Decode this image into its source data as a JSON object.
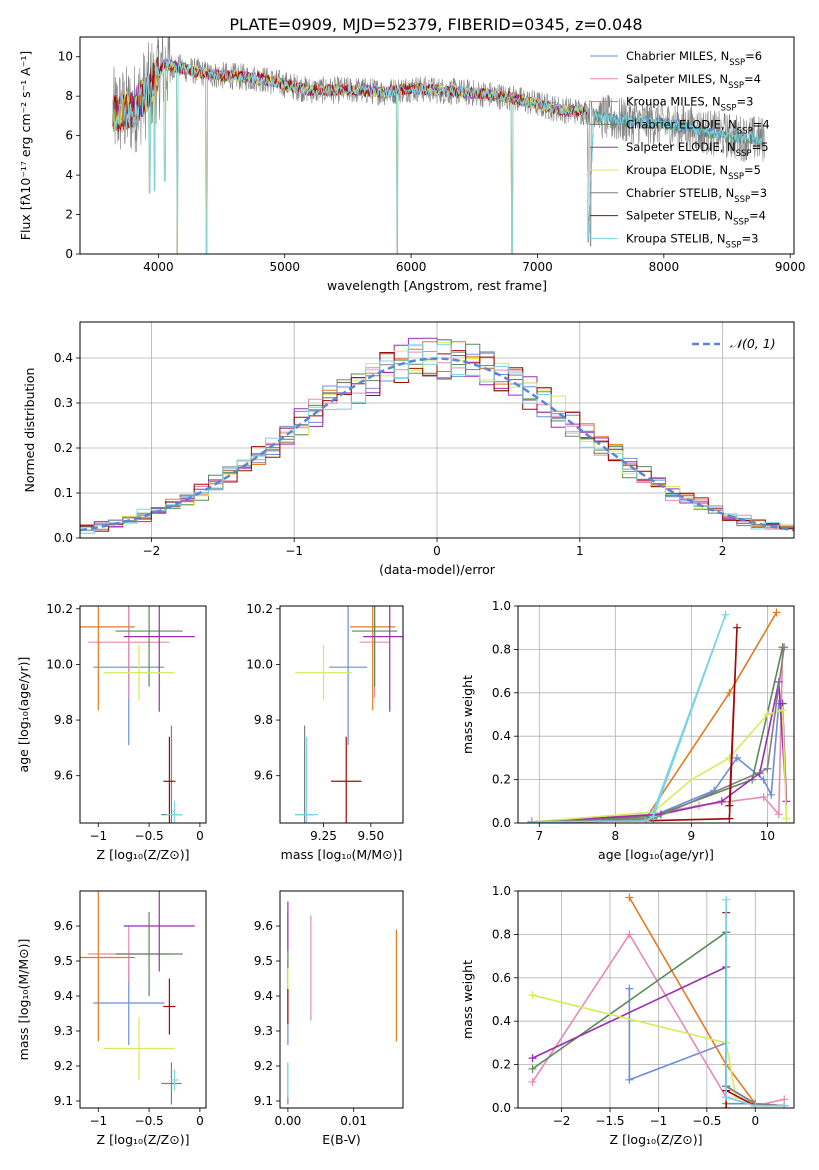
{
  "figure": {
    "title": "PLATE=0909, MJD=52379, FIBERID=0345, z=0.048"
  },
  "models": [
    {
      "name": "Chabrier MILES",
      "nssp": "6",
      "color": "#6a8fd8"
    },
    {
      "name": "Salpeter MILES",
      "nssp": "4",
      "color": "#e88ab4"
    },
    {
      "name": "Kroupa MILES",
      "nssp": "3",
      "color": "#e37a22"
    },
    {
      "name": "Chabrier ELODIE",
      "nssp": "4",
      "color": "#5a8a5a"
    },
    {
      "name": "Salpeter ELODIE",
      "nssp": "5",
      "color": "#9a2eb0"
    },
    {
      "name": "Kroupa ELODIE",
      "nssp": "5",
      "color": "#d8ea5a"
    },
    {
      "name": "Chabrier STELIB",
      "nssp": "3",
      "color": "#808080"
    },
    {
      "name": "Salpeter STELIB",
      "nssp": "4",
      "color": "#a00a0a"
    },
    {
      "name": "Kroupa STELIB",
      "nssp": "3",
      "color": "#7ad4e4"
    }
  ],
  "chart_data": [
    {
      "id": "spectrum",
      "type": "line",
      "xlabel": "wavelength [Angstrom, rest frame]",
      "ylabel": "Flux [fλ10⁻¹⁷ erg cm⁻² s⁻¹ A⁻¹]",
      "xlim": [
        3380,
        9030
      ],
      "ylim": [
        0,
        11
      ],
      "xticks": [
        4000,
        5000,
        6000,
        7000,
        8000,
        9000
      ],
      "yticks": [
        0,
        2,
        4,
        6,
        8,
        10
      ],
      "legend": "upper-right",
      "continuum": [
        [
          3640,
          7.1
        ],
        [
          3800,
          7.3
        ],
        [
          3950,
          8.6
        ],
        [
          4050,
          9.6
        ],
        [
          4200,
          9.4
        ],
        [
          4400,
          9.1
        ],
        [
          4600,
          9.0
        ],
        [
          4800,
          8.9
        ],
        [
          5000,
          8.6
        ],
        [
          5200,
          8.3
        ],
        [
          5400,
          8.3
        ],
        [
          5600,
          8.3
        ],
        [
          5800,
          8.2
        ],
        [
          6000,
          8.4
        ],
        [
          6200,
          8.3
        ],
        [
          6400,
          8.2
        ],
        [
          6600,
          8.1
        ],
        [
          6800,
          7.9
        ],
        [
          7000,
          7.6
        ],
        [
          7200,
          7.3
        ],
        [
          7400,
          7.2
        ],
        [
          7600,
          6.8
        ],
        [
          7800,
          6.7
        ],
        [
          8000,
          6.6
        ],
        [
          8200,
          6.4
        ],
        [
          8400,
          6.1
        ],
        [
          8600,
          5.9
        ],
        [
          8800,
          5.8
        ]
      ],
      "dips": [
        [
          3930,
          3.1
        ],
        [
          3970,
          3.2
        ],
        [
          4050,
          3.7
        ],
        [
          4150,
          0
        ],
        [
          4380,
          0
        ],
        [
          5890,
          0
        ],
        [
          6800,
          0
        ],
        [
          7420,
          0.4
        ]
      ]
    },
    {
      "id": "residuals",
      "type": "line",
      "xlabel": "(data-model)/error",
      "ylabel": "Normed distribution",
      "xlim": [
        -2.5,
        2.5
      ],
      "ylim": [
        0,
        0.48
      ],
      "xticks": [
        -2,
        -1,
        0,
        1,
        2
      ],
      "yticks": [
        0.0,
        0.1,
        0.2,
        0.3,
        0.4
      ],
      "legend_label": "𝒩(0, 1)",
      "legend": "upper-right",
      "bin_width": 0.1
    },
    {
      "id": "age_vs_Z",
      "type": "scatter",
      "xlabel": "Z [log₁₀(Z/Z⊙)]",
      "ylabel": "age  [log₁₀(age/yr)]",
      "xlim": [
        -1.18,
        0.06
      ],
      "ylim": [
        9.43,
        10.21
      ],
      "xticks": [
        -1.0,
        -0.5,
        0.0
      ],
      "yticks": [
        9.6,
        9.8,
        10.0,
        10.2
      ],
      "points": [
        {
          "x": -0.7,
          "y": 9.99,
          "xerr": 0.35,
          "yerr": 0.28
        },
        {
          "x": -0.7,
          "y": 10.08,
          "xerr": 0.4,
          "yerr": 0.2
        },
        {
          "x": -1.0,
          "y": 10.135,
          "xerr": 0.36,
          "yerr": 0.3
        },
        {
          "x": -0.5,
          "y": 10.12,
          "xerr": 0.33,
          "yerr": 0.2
        },
        {
          "x": -0.4,
          "y": 10.1,
          "xerr": 0.35,
          "yerr": 0.27
        },
        {
          "x": -0.6,
          "y": 9.97,
          "xerr": 0.35,
          "yerr": 0.1
        },
        {
          "x": -0.28,
          "y": 9.46,
          "xerr": 0.1,
          "yerr": 0.32
        },
        {
          "x": -0.3,
          "y": 9.58,
          "xerr": 0.06,
          "yerr": 0.16
        },
        {
          "x": -0.25,
          "y": 9.46,
          "xerr": 0.08,
          "yerr": 0.05
        }
      ]
    },
    {
      "id": "age_vs_mass",
      "type": "scatter",
      "xlabel": "mass [log₁₀(M/M⊙)]",
      "ylabel": "",
      "xlim": [
        9.02,
        9.67
      ],
      "ylim": [
        9.43,
        10.21
      ],
      "xticks": [
        9.25,
        9.5
      ],
      "xtick_labels": [
        "9.25",
        "9.50"
      ],
      "yticks": [
        9.6,
        9.8,
        10.0,
        10.2
      ],
      "points": [
        {
          "x": 9.38,
          "y": 9.99,
          "xerr": 0.1,
          "yerr": 0.28
        },
        {
          "x": 9.52,
          "y": 10.08,
          "xerr": 0.08,
          "yerr": 0.2
        },
        {
          "x": 9.51,
          "y": 10.135,
          "xerr": 0.12,
          "yerr": 0.3
        },
        {
          "x": 9.52,
          "y": 10.12,
          "xerr": 0.12,
          "yerr": 0.2
        },
        {
          "x": 9.6,
          "y": 10.1,
          "xerr": 0.14,
          "yerr": 0.27
        },
        {
          "x": 9.25,
          "y": 9.97,
          "xerr": 0.15,
          "yerr": 0.1
        },
        {
          "x": 9.15,
          "y": 9.46,
          "xerr": 0.05,
          "yerr": 0.32
        },
        {
          "x": 9.37,
          "y": 9.58,
          "xerr": 0.08,
          "yerr": 0.16
        },
        {
          "x": 9.16,
          "y": 9.46,
          "xerr": 0.06,
          "yerr": 0.28
        }
      ]
    },
    {
      "id": "weight_vs_age",
      "type": "line",
      "xlabel": "age  [log₁₀(age/yr)]",
      "ylabel": "mass weight",
      "xlim": [
        6.72,
        10.35
      ],
      "ylim": [
        0,
        1
      ],
      "xticks": [
        7,
        8,
        9,
        10
      ],
      "yticks": [
        0.0,
        0.2,
        0.4,
        0.6,
        0.8,
        1.0
      ],
      "series": [
        {
          "x": [
            6.9,
            8.4,
            9.3,
            9.6,
            9.95,
            10.05,
            10.15
          ],
          "y": [
            0.005,
            0.02,
            0.15,
            0.3,
            0.2,
            0.13,
            0.55
          ]
        },
        {
          "x": [
            6.9,
            8.5,
            9.1,
            9.95,
            10.15,
            10.2
          ],
          "y": [
            0.005,
            0.04,
            0.08,
            0.12,
            0.04,
            0.8
          ]
        },
        {
          "x": [
            6.9,
            8.4,
            9.5,
            10.12
          ],
          "y": [
            0.005,
            0.02,
            0.6,
            0.97
          ]
        },
        {
          "x": [
            6.9,
            8.5,
            9.8,
            10.2
          ],
          "y": [
            0.005,
            0.03,
            0.2,
            0.81
          ]
        },
        {
          "x": [
            6.9,
            8.6,
            9.4,
            9.9,
            10.15,
            10.25,
            10.2
          ],
          "y": [
            0.005,
            0.04,
            0.1,
            0.23,
            0.65,
            0.1,
            0.55
          ]
        },
        {
          "x": [
            6.9,
            8.5,
            9.0,
            9.5,
            10.0,
            10.2,
            10.25
          ],
          "y": [
            0.005,
            0.05,
            0.2,
            0.3,
            0.5,
            0.52,
            0.02
          ]
        },
        {
          "x": [
            6.9,
            8.5,
            10.0,
            10.22
          ],
          "y": [
            0.005,
            0.02,
            0.25,
            0.81
          ]
        },
        {
          "x": [
            6.9,
            8.4,
            9.5,
            9.6,
            9.5
          ],
          "y": [
            0.005,
            0.01,
            0.02,
            0.9,
            0.08
          ]
        },
        {
          "x": [
            6.9,
            8.4,
            8.5,
            9.45,
            8.5
          ],
          "y": [
            0.005,
            0.01,
            0.03,
            0.96,
            0.05
          ]
        }
      ]
    },
    {
      "id": "mass_vs_Z",
      "type": "scatter",
      "xlabel": "Z [log₁₀(Z/Z⊙)]",
      "ylabel": "mass [log₁₀(M/M⊙)]",
      "xlim": [
        -1.18,
        0.06
      ],
      "ylim": [
        9.08,
        9.7
      ],
      "xticks": [
        -1.0,
        -0.5,
        0.0
      ],
      "yticks": [
        9.1,
        9.2,
        9.3,
        9.4,
        9.5,
        9.6
      ],
      "points": [
        {
          "x": -0.7,
          "y": 9.38,
          "xerr": 0.35,
          "yerr": 0.12
        },
        {
          "x": -0.7,
          "y": 9.52,
          "xerr": 0.4,
          "yerr": 0.08
        },
        {
          "x": -1.0,
          "y": 9.51,
          "xerr": 0.36,
          "yerr": 0.24
        },
        {
          "x": -0.5,
          "y": 9.52,
          "xerr": 0.33,
          "yerr": 0.12
        },
        {
          "x": -0.4,
          "y": 9.6,
          "xerr": 0.35,
          "yerr": 0.13
        },
        {
          "x": -0.6,
          "y": 9.25,
          "xerr": 0.35,
          "yerr": 0.09
        },
        {
          "x": -0.28,
          "y": 9.15,
          "xerr": 0.1,
          "yerr": 0.06
        },
        {
          "x": -0.3,
          "y": 9.37,
          "xerr": 0.06,
          "yerr": 0.08
        },
        {
          "x": -0.25,
          "y": 9.16,
          "xerr": 0.04,
          "yerr": 0.03
        }
      ]
    },
    {
      "id": "mass_vs_ebv",
      "type": "scatter",
      "xlabel": "E(B-V)",
      "ylabel": "",
      "xlim": [
        -0.0012,
        0.0175
      ],
      "ylim": [
        9.08,
        9.7
      ],
      "xticks": [
        0.0,
        0.01
      ],
      "xtick_labels": [
        "0.00",
        "0.01"
      ],
      "yticks": [
        9.1,
        9.2,
        9.3,
        9.4,
        9.5,
        9.6
      ],
      "points": [
        {
          "x": 0.0,
          "y": 9.38,
          "yerr": 0.12
        },
        {
          "x": 0.0035,
          "y": 9.48,
          "yerr": 0.15
        },
        {
          "x": 0.0165,
          "y": 9.43,
          "yerr": 0.16
        },
        {
          "x": 0.0,
          "y": 9.52,
          "yerr": 0.12
        },
        {
          "x": 0.0,
          "y": 9.6,
          "yerr": 0.07
        },
        {
          "x": 0.0,
          "y": 9.4,
          "yerr": 0.08
        },
        {
          "x": 0.0,
          "y": 9.15,
          "yerr": 0.06
        },
        {
          "x": 0.0,
          "y": 9.37,
          "yerr": 0.05
        },
        {
          "x": 0.0,
          "y": 9.16,
          "yerr": 0.05
        }
      ]
    },
    {
      "id": "weight_vs_Z",
      "type": "line",
      "xlabel": "Z [log₁₀(Z/Z⊙)]",
      "ylabel": "mass weight",
      "xlim": [
        -2.45,
        0.4
      ],
      "ylim": [
        0,
        1
      ],
      "xticks": [
        -2.0,
        -1.5,
        -1.0,
        -0.5,
        0.0
      ],
      "yticks": [
        0.0,
        0.2,
        0.4,
        0.6,
        0.8,
        1.0
      ],
      "series": [
        {
          "x": [
            -1.3,
            -1.3,
            -0.3,
            -0.3,
            0.0,
            0.3
          ],
          "y": [
            0.55,
            0.13,
            0.3,
            0.02,
            0.02,
            0.01
          ]
        },
        {
          "x": [
            -2.3,
            -1.3,
            -0.3,
            0.0,
            0.3
          ],
          "y": [
            0.12,
            0.8,
            0.05,
            0.01,
            0.04
          ]
        },
        {
          "x": [
            -1.3,
            -0.3,
            0.0,
            0.3
          ],
          "y": [
            0.97,
            0.2,
            0.02,
            0.01
          ]
        },
        {
          "x": [
            -2.3,
            -0.3,
            -0.3,
            0.0,
            0.3
          ],
          "y": [
            0.18,
            0.81,
            0.1,
            0.02,
            0.01
          ]
        },
        {
          "x": [
            -2.3,
            -0.3,
            -0.3,
            0.0,
            0.3
          ],
          "y": [
            0.23,
            0.65,
            0.1,
            0.02,
            0.01
          ]
        },
        {
          "x": [
            -2.3,
            -0.3,
            -0.2,
            0.0,
            0.3
          ],
          "y": [
            0.52,
            0.3,
            0.05,
            0.02,
            0.01
          ]
        },
        {
          "x": [
            -0.3,
            -0.3,
            0.0,
            0.3
          ],
          "y": [
            0.81,
            0.1,
            0.02,
            0.01
          ]
        },
        {
          "x": [
            -0.3,
            -0.3,
            -0.3,
            0.0
          ],
          "y": [
            0.9,
            0.0,
            0.08,
            0.01
          ]
        },
        {
          "x": [
            -0.3,
            -0.3,
            0.0,
            0.3
          ],
          "y": [
            0.96,
            0.05,
            0.01,
            0.01
          ]
        }
      ]
    }
  ]
}
